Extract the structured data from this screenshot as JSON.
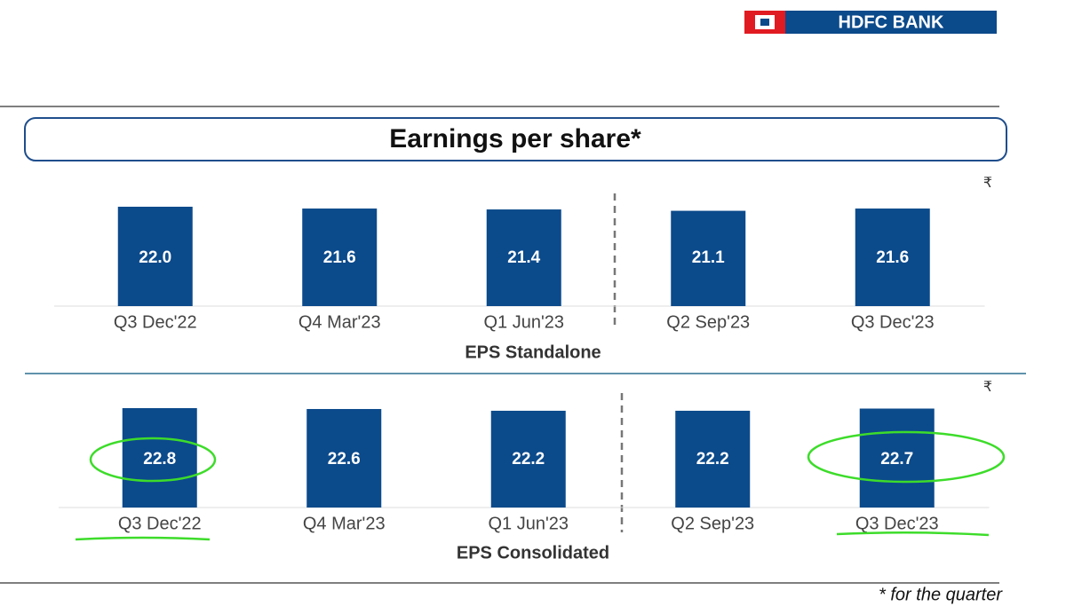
{
  "page": {
    "logo": "HDFC BANK",
    "title": "Earnings per share*",
    "footnote": "* for the quarter"
  },
  "chart_data": [
    {
      "type": "bar",
      "title": "EPS Standalone",
      "unit": "₹",
      "color": "#0b4a8b",
      "categories": [
        "Q3 Dec'22",
        "Q4 Mar'23",
        "Q1 Jun'23",
        "Q2 Sep'23",
        "Q3 Dec'23"
      ],
      "values": [
        22.0,
        21.6,
        21.4,
        21.1,
        21.6
      ],
      "value_labels": [
        "22.0",
        "21.6",
        "21.4",
        "21.1",
        "21.6"
      ]
    },
    {
      "type": "bar",
      "title": "EPS Consolidated",
      "unit": "₹",
      "color": "#0b4a8b",
      "categories": [
        "Q3 Dec'22",
        "Q4 Mar'23",
        "Q1 Jun'23",
        "Q2 Sep'23",
        "Q3 Dec'23"
      ],
      "values": [
        22.8,
        22.6,
        22.2,
        22.2,
        22.7
      ],
      "value_labels": [
        "22.8",
        "22.6",
        "22.2",
        "22.2",
        "22.7"
      ]
    }
  ]
}
